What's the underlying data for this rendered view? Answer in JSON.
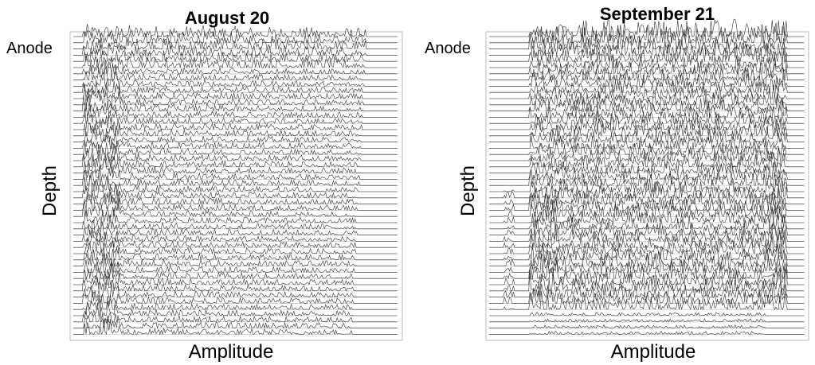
{
  "panels": [
    {
      "title": "August 20",
      "top_label": "Anode",
      "y_label": "Depth",
      "x_label": "Amplitude"
    },
    {
      "title": "September 21",
      "top_label": "Anode",
      "y_label": "Depth",
      "x_label": "Amplitude"
    }
  ]
}
